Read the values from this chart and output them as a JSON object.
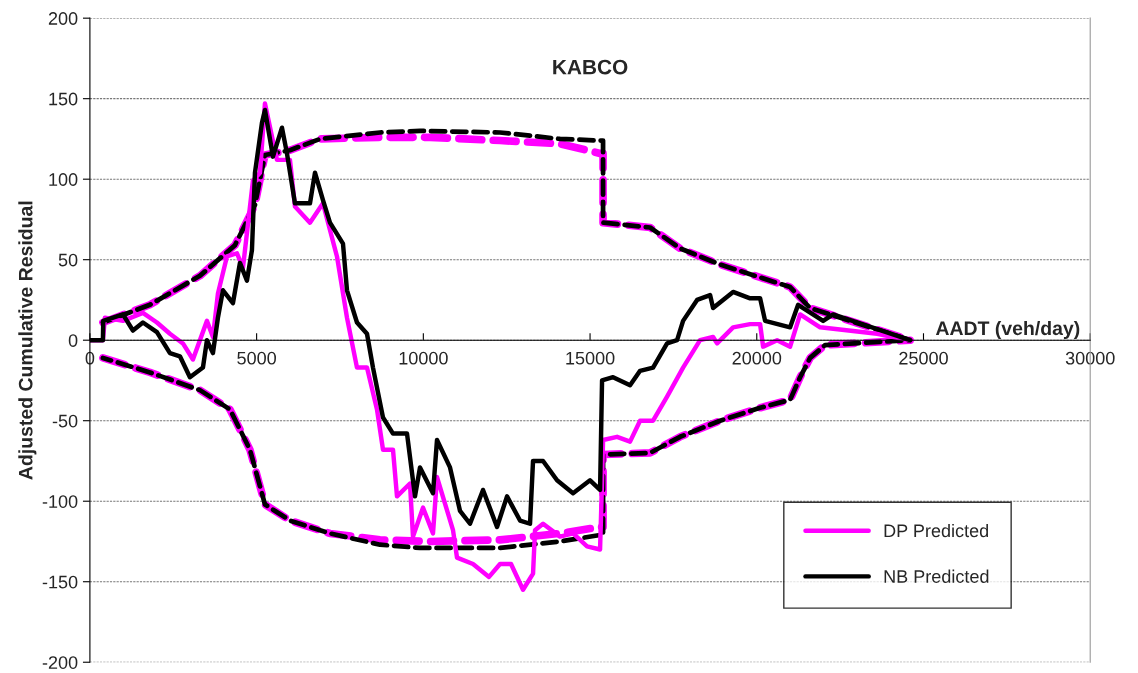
{
  "chart_data": {
    "type": "line",
    "title": "KABCO",
    "xlabel": "AADT (veh/day)",
    "ylabel": "Adjusted Cumulative Residual",
    "xlim": [
      0,
      30000
    ],
    "xticks": [
      0,
      5000,
      10000,
      15000,
      20000,
      25000,
      30000
    ],
    "ylim": [
      -200,
      200
    ],
    "yticks": [
      -200,
      -150,
      -100,
      -50,
      0,
      50,
      100,
      150,
      200
    ],
    "grid": "y",
    "legend": "bottom right",
    "marker": "none",
    "series": [
      {
        "color": "#ff00ff",
        "line_style": "dashed",
        "x": [
          390,
          1800,
          3300,
          4350,
          4950,
          5250,
          6000,
          6900,
          8700,
          10200,
          12300,
          14100,
          15300,
          15390,
          15390,
          16800,
          17700,
          18900,
          20100,
          21000,
          21600,
          24600
        ],
        "values": [
          11,
          22,
          40,
          59,
          84,
          115,
          118,
          125,
          126,
          126,
          124,
          122,
          116,
          116,
          73,
          70,
          57,
          47,
          39,
          33,
          20,
          0
        ]
      },
      {
        "color": "#ff00ff",
        "line_style": "dashed",
        "x": [
          390,
          1800,
          3300,
          4200,
          4800,
          5250,
          6000,
          7200,
          8700,
          10200,
          12300,
          14100,
          15300,
          15390,
          15390,
          16800,
          17700,
          18900,
          20100,
          21000,
          21300,
          21600,
          22050,
          24600
        ],
        "values": [
          -11,
          -20,
          -31,
          -43,
          -68,
          -102,
          -112,
          -120,
          -124,
          -125,
          -124,
          -120,
          -116,
          -116,
          -71,
          -70,
          -60,
          -50,
          -42,
          -37,
          -23,
          -11,
          -3,
          0
        ]
      },
      {
        "color": "#000000",
        "line_style": "dashed",
        "x": [
          390,
          1800,
          3300,
          4350,
          4950,
          5250,
          6000,
          6900,
          8700,
          9900,
          12300,
          14100,
          15300,
          15390,
          15390,
          16800,
          17700,
          18900,
          20100,
          21000,
          21600,
          24600
        ],
        "values": [
          11,
          22,
          40,
          59,
          84,
          115,
          118,
          125,
          129,
          130,
          129,
          125,
          124,
          124,
          73,
          70,
          57,
          47,
          39,
          33,
          20,
          0
        ]
      },
      {
        "color": "#000000",
        "line_style": "dashed",
        "x": [
          390,
          1800,
          3300,
          4200,
          4800,
          5250,
          6000,
          7200,
          8700,
          9900,
          12300,
          14100,
          15300,
          15390,
          15390,
          16800,
          17700,
          18900,
          20100,
          21000,
          21300,
          21600,
          22050,
          24600
        ],
        "values": [
          -11,
          -20,
          -31,
          -43,
          -68,
          -102,
          -112,
          -120,
          -127,
          -129,
          -129,
          -125,
          -121,
          -121,
          -71,
          -70,
          -60,
          -50,
          -42,
          -37,
          -23,
          -11,
          -3,
          0
        ]
      },
      {
        "name": "DP Predicted",
        "color": "#ff00ff",
        "line_style": "solid",
        "x": [
          0,
          390,
          450,
          990,
          1590,
          2010,
          2400,
          2790,
          3090,
          3510,
          3690,
          3840,
          4110,
          4410,
          4590,
          4890,
          5100,
          5250,
          5610,
          6000,
          6150,
          6600,
          6990,
          7410,
          7710,
          8010,
          8310,
          8610,
          8790,
          9090,
          9210,
          9600,
          9690,
          9990,
          10290,
          10410,
          10890,
          11010,
          11490,
          11970,
          12300,
          12630,
          12990,
          13290,
          13350,
          13590,
          14100,
          14490,
          14910,
          15300,
          15360,
          15390,
          15810,
          16200,
          16500,
          16890,
          17310,
          17790,
          18300,
          18690,
          18810,
          19290,
          19800,
          20100,
          20190,
          20610,
          21000,
          21300,
          21900,
          23610,
          24600
        ],
        "values": [
          0,
          0,
          14,
          12,
          17,
          11,
          4,
          -2,
          -12,
          12,
          2,
          29,
          52,
          54,
          45,
          99,
          104,
          147,
          112,
          112,
          83,
          73,
          85,
          52,
          14,
          -17,
          -17,
          -43,
          -68,
          -68,
          -97,
          -89,
          -122,
          -104,
          -120,
          -85,
          -118,
          -135,
          -139,
          -147,
          -139,
          -139,
          -155,
          -145,
          -118,
          -114,
          -122,
          -120,
          -128,
          -130,
          -87,
          -62,
          -60,
          -63,
          -50,
          -50,
          -35,
          -17,
          0,
          2,
          -2,
          8,
          10,
          10,
          -4,
          0,
          -4,
          16,
          8,
          4,
          0
        ]
      },
      {
        "name": "NB Predicted",
        "color": "#000000",
        "line_style": "solid",
        "x": [
          0,
          390,
          400,
          990,
          1290,
          1590,
          2010,
          2400,
          2700,
          3000,
          3390,
          3510,
          3690,
          3840,
          3990,
          4290,
          4500,
          4710,
          4860,
          4950,
          5160,
          5250,
          5490,
          5760,
          5910,
          6150,
          6600,
          6750,
          6990,
          7200,
          7590,
          7710,
          8010,
          8310,
          8490,
          8790,
          9090,
          9510,
          9750,
          9900,
          10290,
          10410,
          10800,
          11100,
          11400,
          11790,
          12210,
          12510,
          12900,
          13200,
          13290,
          13590,
          14010,
          14490,
          15000,
          15300,
          15360,
          15690,
          16200,
          16500,
          16890,
          17310,
          17610,
          17790,
          18210,
          18600,
          18690,
          19290,
          19800,
          20100,
          20250,
          21000,
          21240,
          21990,
          22290,
          24600
        ],
        "values": [
          0,
          0,
          12,
          16,
          6,
          11,
          5,
          -8,
          -10,
          -23,
          -17,
          0,
          -8,
          14,
          31,
          23,
          48,
          37,
          56,
          104,
          135,
          143,
          114,
          132,
          116,
          85,
          85,
          104,
          87,
          73,
          60,
          31,
          11,
          4,
          -17,
          -48,
          -58,
          -58,
          -97,
          -79,
          -95,
          -62,
          -79,
          -106,
          -114,
          -93,
          -116,
          -97,
          -112,
          -114,
          -75,
          -75,
          -87,
          -95,
          -87,
          -93,
          -25,
          -23,
          -28,
          -19,
          -17,
          -2,
          0,
          12,
          25,
          28,
          20,
          30,
          26,
          26,
          12,
          8,
          22,
          12,
          16,
          0
        ]
      }
    ]
  }
}
